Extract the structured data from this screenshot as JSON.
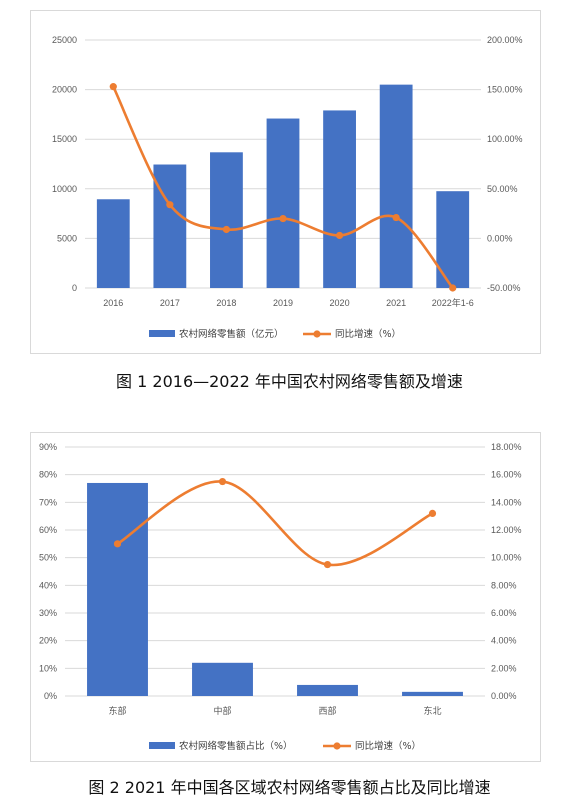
{
  "captions": {
    "fig1": "图 1   2016—2022 年中国农村网络零售额及增速",
    "fig2": "图 2   2021 年中国各区域农村网络零售额占比及同比增速"
  },
  "colors": {
    "bar": "#4472C4",
    "line": "#ED7D31",
    "grid": "#d9d9d9"
  },
  "chart_data": [
    {
      "type": "bar",
      "categories": [
        "2016",
        "2017",
        "2018",
        "2019",
        "2020",
        "2021",
        "2022年1-6"
      ],
      "series": [
        {
          "name": "农村网络零售额（亿元）",
          "type": "bar",
          "axis": "left",
          "values": [
            8945,
            12448,
            13679,
            17083,
            17900,
            20500,
            9759
          ]
        },
        {
          "name": "同比增速（%）",
          "type": "line",
          "axis": "right",
          "values": [
            153,
            34,
            9,
            20,
            3,
            21,
            -50
          ]
        }
      ],
      "y_left": {
        "ylim": [
          0,
          25000
        ],
        "ticks": [
          "0",
          "5000",
          "10000",
          "15000",
          "20000",
          "25000"
        ]
      },
      "y_right": {
        "ylim": [
          -50,
          200
        ],
        "ticks": [
          "-50.00%",
          "0.00%",
          "50.00%",
          "100.00%",
          "150.00%",
          "200.00%"
        ]
      },
      "grid": true,
      "legend": "bottom"
    },
    {
      "type": "bar",
      "categories": [
        "东部",
        "中部",
        "西部",
        "东北"
      ],
      "series": [
        {
          "name": "农村网络零售额占比（%）",
          "type": "bar",
          "axis": "left",
          "values": [
            77,
            12,
            4,
            1.5
          ]
        },
        {
          "name": "同比增速（%）",
          "type": "line",
          "axis": "right",
          "values": [
            11.0,
            15.5,
            9.5,
            13.2
          ]
        }
      ],
      "y_left": {
        "ylim": [
          0,
          90
        ],
        "ticks": [
          "0%",
          "10%",
          "20%",
          "30%",
          "40%",
          "50%",
          "60%",
          "70%",
          "80%",
          "90%"
        ]
      },
      "y_right": {
        "ylim": [
          0,
          18
        ],
        "ticks": [
          "0.00%",
          "2.00%",
          "4.00%",
          "6.00%",
          "8.00%",
          "10.00%",
          "12.00%",
          "14.00%",
          "16.00%",
          "18.00%"
        ]
      },
      "grid": true,
      "legend": "bottom"
    }
  ]
}
